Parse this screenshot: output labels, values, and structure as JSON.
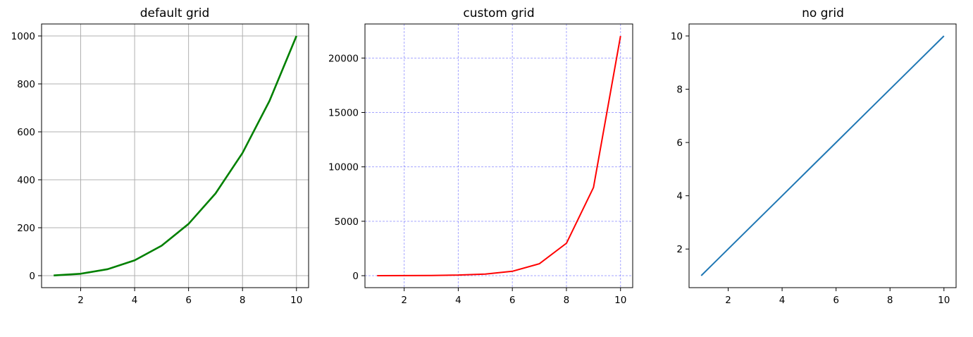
{
  "chart_data": [
    {
      "type": "line",
      "title": "default grid",
      "xlabel": "",
      "ylabel": "",
      "grid": "on",
      "grid_style": "solid",
      "grid_color": "#b0b0b0",
      "line_color": "#008000",
      "x": [
        1,
        2,
        3,
        4,
        5,
        6,
        7,
        8,
        9,
        10
      ],
      "series": [
        {
          "values": [
            1,
            8,
            27,
            64,
            125,
            216,
            343,
            512,
            729,
            1000
          ]
        }
      ],
      "xlim": [
        0.55,
        10.45
      ],
      "ylim": [
        -50,
        1050
      ],
      "xticks": [
        "2",
        "4",
        "6",
        "8",
        "10"
      ],
      "yticks": [
        "0",
        "200",
        "400",
        "600",
        "800",
        "1000"
      ]
    },
    {
      "type": "line",
      "title": "custom grid",
      "xlabel": "",
      "ylabel": "",
      "grid": "on",
      "grid_style": "dashed",
      "grid_color": "#0000ff",
      "line_color": "#ff0000",
      "x": [
        1,
        2,
        3,
        4,
        5,
        6,
        7,
        8,
        9,
        10
      ],
      "series": [
        {
          "values": [
            2.7,
            7.4,
            20.1,
            54.6,
            148.4,
            403.4,
            1096.6,
            2981,
            8103.1,
            22026.5
          ]
        }
      ],
      "xlim": [
        0.55,
        10.45
      ],
      "ylim": [
        -1100,
        23130
      ],
      "xticks": [
        "2",
        "4",
        "6",
        "8",
        "10"
      ],
      "yticks": [
        "0",
        "5000",
        "10000",
        "15000",
        "20000"
      ]
    },
    {
      "type": "line",
      "title": "no grid",
      "xlabel": "",
      "ylabel": "",
      "grid": "off",
      "line_color": "#1f77b4",
      "x": [
        1,
        2,
        3,
        4,
        5,
        6,
        7,
        8,
        9,
        10
      ],
      "series": [
        {
          "values": [
            1,
            2,
            3,
            4,
            5,
            6,
            7,
            8,
            9,
            10
          ]
        }
      ],
      "xlim": [
        0.55,
        10.45
      ],
      "ylim": [
        0.55,
        10.45
      ],
      "xticks": [
        "2",
        "4",
        "6",
        "8",
        "10"
      ],
      "yticks": [
        "2",
        "4",
        "6",
        "8",
        "10"
      ]
    }
  ]
}
